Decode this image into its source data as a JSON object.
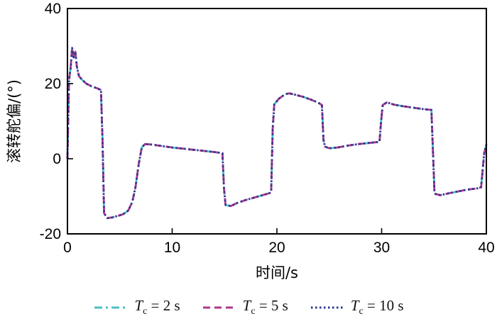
{
  "chart_data": {
    "type": "line",
    "title": "",
    "xlabel": "时间/s",
    "ylabel": "滚转舵偏/(°)",
    "xlim": [
      0,
      40
    ],
    "ylim": [
      -20,
      40
    ],
    "x_ticks": [
      0,
      10,
      20,
      30,
      40
    ],
    "y_ticks": [
      -20,
      0,
      20,
      40
    ],
    "grid": false,
    "legend_position": "bottom",
    "x": [
      0,
      0.15,
      0.3,
      0.45,
      0.6,
      0.75,
      0.9,
      1.1,
      1.4,
      1.8,
      2.3,
      2.8,
      3.2,
      3.35,
      3.5,
      3.8,
      4.3,
      4.8,
      5.3,
      5.8,
      6.2,
      6.5,
      6.8,
      7.1,
      7.4,
      8,
      9,
      10,
      11,
      12,
      13,
      14,
      14.8,
      14.95,
      15.1,
      15.6,
      16.2,
      17,
      18,
      19,
      19.45,
      19.6,
      19.75,
      20.2,
      20.8,
      21.2,
      21.8,
      22.5,
      23.2,
      23.9,
      24.3,
      24.45,
      24.6,
      25,
      25.8,
      26.8,
      27.8,
      28.8,
      29.8,
      29.95,
      30.1,
      30.5,
      31.2,
      32,
      33,
      34,
      34.75,
      34.9,
      35.05,
      35.6,
      36.4,
      37.3,
      38.2,
      39.1,
      39.5,
      39.65,
      39.8,
      40
    ],
    "series": [
      {
        "name": "Tc = 2 s",
        "color": "#4bbfc4",
        "dash": "11 5 3 5",
        "values": [
          0,
          21,
          24,
          29.5,
          27,
          28.5,
          24.5,
          22,
          21,
          20,
          19.3,
          18.8,
          18.3,
          5,
          -14.5,
          -15.8,
          -15.6,
          -15.2,
          -14.8,
          -13.8,
          -11.5,
          -7.5,
          -1.5,
          3,
          3.9,
          3.8,
          3.4,
          3,
          2.7,
          2.4,
          2.1,
          1.8,
          1.5,
          -8,
          -12.3,
          -12.6,
          -11.8,
          -11,
          -10.2,
          -9.4,
          -9,
          8,
          14.5,
          16,
          17.2,
          17.4,
          17,
          16.5,
          15.8,
          15,
          14.3,
          5,
          3.2,
          2.8,
          3,
          3.5,
          3.9,
          4.2,
          4.5,
          10,
          14.3,
          15,
          14.4,
          14,
          13.6,
          13.2,
          13,
          2,
          -9.3,
          -9.7,
          -9.2,
          -8.7,
          -8.2,
          -7.9,
          -7.6,
          -3,
          1.5,
          3.8
        ]
      },
      {
        "name": "Tc = 5 s",
        "color": "#b0368c",
        "dash": "10 6",
        "values": [
          0,
          21,
          24,
          29.5,
          27,
          28.5,
          24.5,
          22,
          21,
          20,
          19.3,
          18.8,
          18.3,
          5,
          -14.5,
          -15.8,
          -15.6,
          -15.2,
          -14.8,
          -13.8,
          -11.5,
          -7.5,
          -1.5,
          3,
          3.9,
          3.8,
          3.4,
          3,
          2.7,
          2.4,
          2.1,
          1.8,
          1.5,
          -8,
          -12.3,
          -12.6,
          -11.8,
          -11,
          -10.2,
          -9.4,
          -9,
          8,
          14.5,
          16,
          17.2,
          17.4,
          17,
          16.5,
          15.8,
          15,
          14.3,
          5,
          3.2,
          2.8,
          3,
          3.5,
          3.9,
          4.2,
          4.5,
          10,
          14.3,
          15,
          14.4,
          14,
          13.6,
          13.2,
          13,
          2,
          -9.3,
          -9.7,
          -9.2,
          -8.7,
          -8.2,
          -7.9,
          -7.6,
          -3,
          1.5,
          3.8
        ]
      },
      {
        "name": "Tc = 10 s",
        "color": "#2a3590",
        "dash": "2.5 3.5",
        "values": [
          0,
          21,
          24,
          29.5,
          27,
          28.5,
          24.5,
          22,
          21,
          20,
          19.3,
          18.8,
          18.3,
          5,
          -14.5,
          -15.8,
          -15.6,
          -15.2,
          -14.8,
          -13.8,
          -11.5,
          -7.5,
          -1.5,
          3,
          3.9,
          3.8,
          3.4,
          3,
          2.7,
          2.4,
          2.1,
          1.8,
          1.5,
          -8,
          -12.3,
          -12.6,
          -11.8,
          -11,
          -10.2,
          -9.4,
          -9,
          8,
          14.5,
          16,
          17.2,
          17.4,
          17,
          16.5,
          15.8,
          15,
          14.3,
          5,
          3.2,
          2.8,
          3,
          3.5,
          3.9,
          4.2,
          4.5,
          10,
          14.3,
          15,
          14.4,
          14,
          13.6,
          13.2,
          13,
          2,
          -9.3,
          -9.7,
          -9.2,
          -8.7,
          -8.2,
          -7.9,
          -7.6,
          -3,
          1.5,
          3.8
        ]
      }
    ]
  },
  "legend": {
    "items": [
      {
        "symbol": "T",
        "subscript": "c",
        "text": " = 2 s"
      },
      {
        "symbol": "T",
        "subscript": "c",
        "text": " = 5 s"
      },
      {
        "symbol": "T",
        "subscript": "c",
        "text": " = 10 s"
      }
    ]
  }
}
